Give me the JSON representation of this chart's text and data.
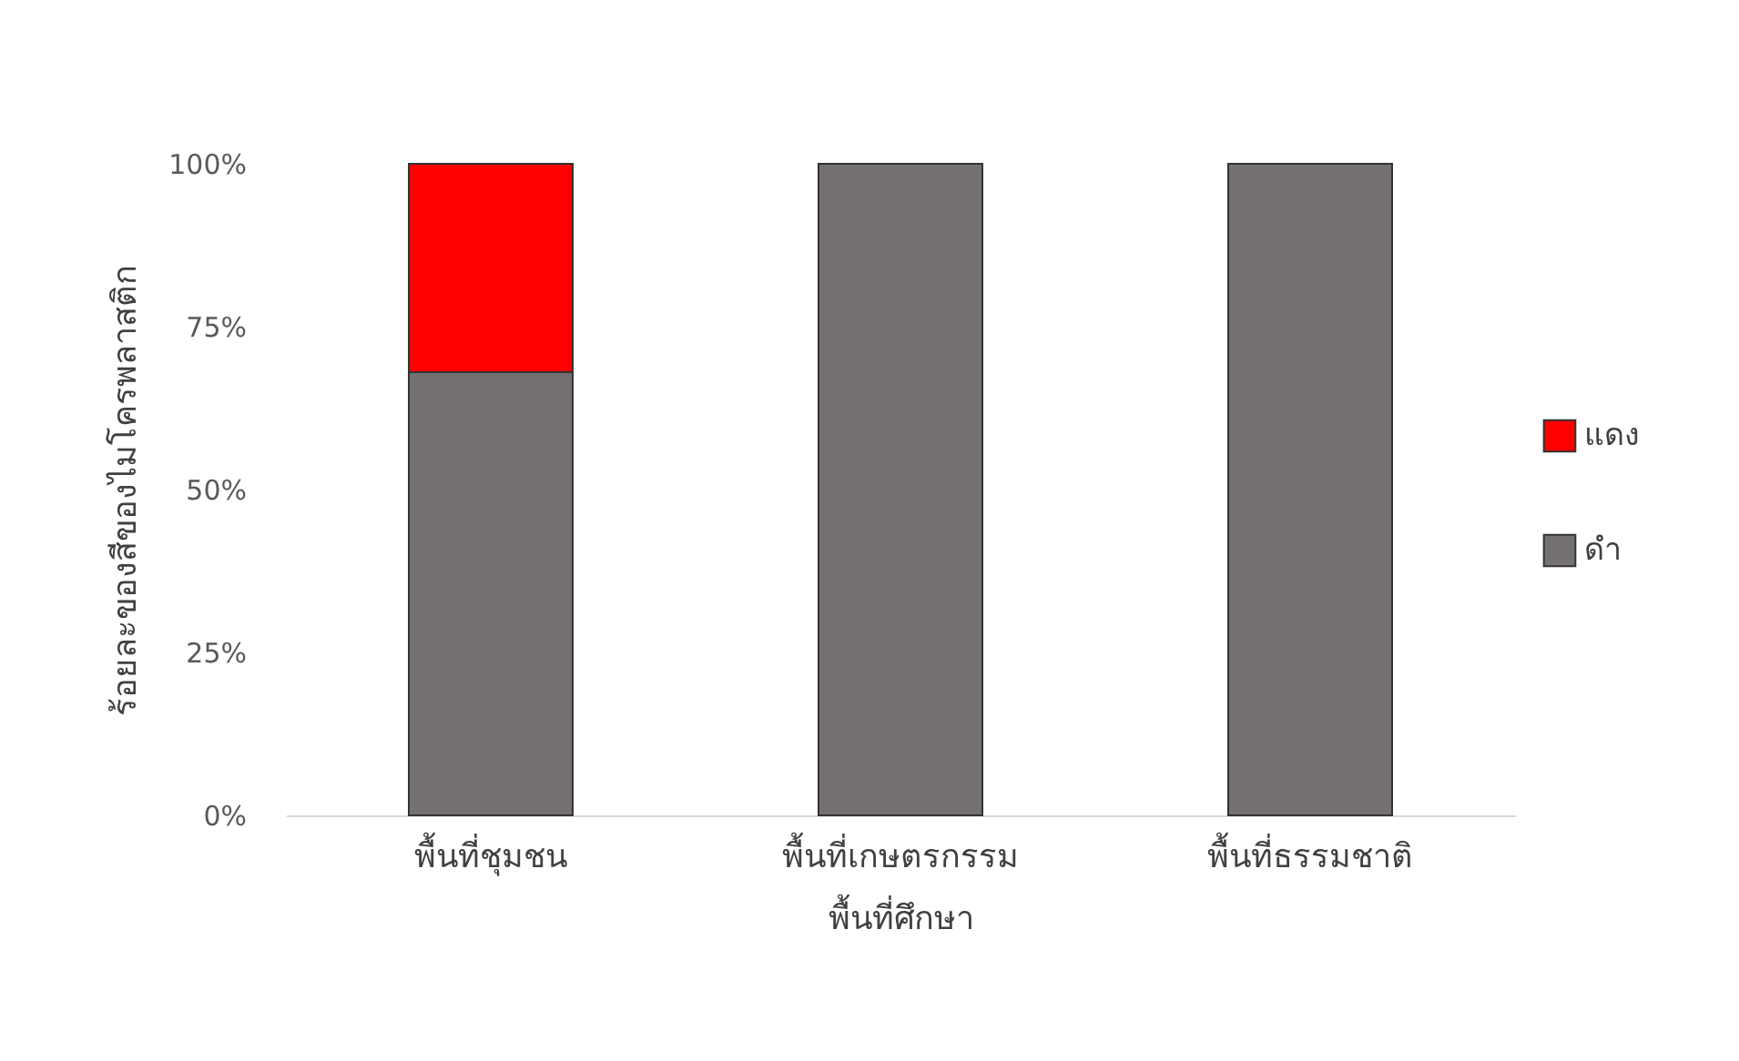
{
  "chart_data": {
    "type": "bar",
    "stacked": true,
    "xlabel": "พื้นที่ศึกษา",
    "ylabel": "ร้อยละของสีของไมโครพลาสติก",
    "categories": [
      "พื้นที่ชุมชน",
      "พื้นที่เกษตรกรรม",
      "พื้นที่ธรรมชาติ"
    ],
    "series": [
      {
        "name": "ดำ",
        "color": "#767171",
        "values": [
          68,
          100,
          100
        ]
      },
      {
        "name": "แดง",
        "color": "#ff0000",
        "values": [
          32,
          null,
          null
        ]
      }
    ],
    "ylim": [
      0,
      100
    ],
    "yticks": [
      {
        "value": 0,
        "label": "0%"
      },
      {
        "value": 25,
        "label": "25%"
      },
      {
        "value": 50,
        "label": "50%"
      },
      {
        "value": 75,
        "label": "75%"
      },
      {
        "value": 100,
        "label": "100%"
      }
    ],
    "grid": false,
    "legend": "right"
  }
}
